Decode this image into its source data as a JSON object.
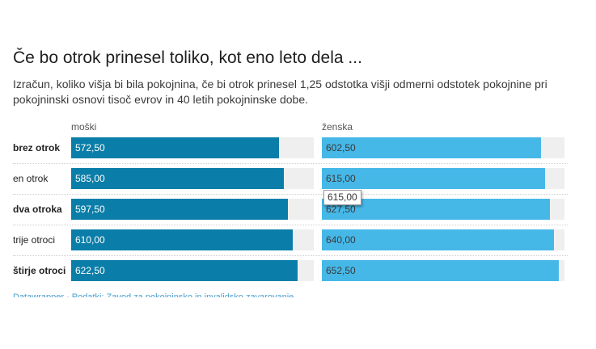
{
  "title": "Če bo otrok prinesel toliko, kot eno leto dela ...",
  "description": "Izračun, koliko višja bi bila pokojnina, če bi otrok prinesel 1,25 odstotka višji odmerni odstotek pokojnine pri pokojninski osnovi tisoč evrov in 40 letih pokojninske dobe.",
  "tooltip": "615,00",
  "source": "Datawrapper · Podatki: Zavod za pokojninsko in invalidsko zavarovanje",
  "colors": {
    "moski": "#0a7ea8",
    "zenska": "#46b8e8",
    "track": "#efefef"
  },
  "chart_data": {
    "type": "bar",
    "orientation": "horizontal",
    "categories": [
      "brez otrok",
      "en otrok",
      "dva otroka",
      "trije otroci",
      "štirje otroci"
    ],
    "bold_categories": [
      "brez otrok",
      "dva otroka",
      "štirje otroci"
    ],
    "series": [
      {
        "name": "moški",
        "values": [
          572.5,
          585.0,
          597.5,
          610.0,
          622.5
        ],
        "labels": [
          "572,50",
          "585,00",
          "597,50",
          "610,00",
          "622,50"
        ]
      },
      {
        "name": "ženska",
        "values": [
          602.5,
          615.0,
          627.5,
          640.0,
          652.5
        ],
        "labels": [
          "602,50",
          "615,00",
          "627,50",
          "640,00",
          "652,50"
        ]
      }
    ],
    "xlim": [
      0,
      668
    ]
  }
}
